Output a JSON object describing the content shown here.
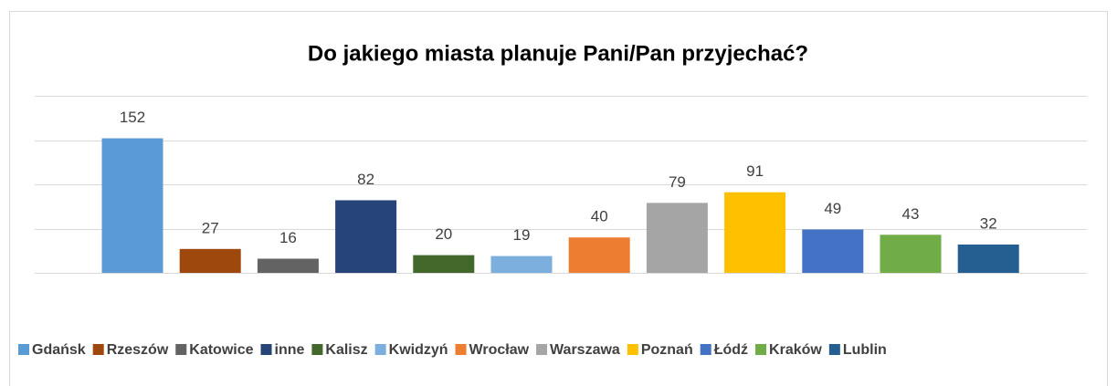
{
  "chart_data": {
    "type": "bar",
    "title": "Do jakiego miasta planuje Pani/Pan przyjechać?",
    "series": [
      {
        "name": "Gdańsk",
        "color": "#5b9bd5",
        "values": [
          152
        ]
      },
      {
        "name": "Rzeszów",
        "color": "#9e480e",
        "values": [
          27
        ]
      },
      {
        "name": "Katowice",
        "color": "#636363",
        "values": [
          16
        ]
      },
      {
        "name": "inne",
        "color": "#264478",
        "values": [
          82
        ]
      },
      {
        "name": "Kalisz",
        "color": "#43682b",
        "values": [
          20
        ]
      },
      {
        "name": "Kwidzyń",
        "color": "#7cafdd",
        "values": [
          19
        ]
      },
      {
        "name": "Wrocław",
        "color": "#ed7d31",
        "values": [
          40
        ]
      },
      {
        "name": "Warszawa",
        "color": "#a5a5a5",
        "values": [
          79
        ]
      },
      {
        "name": "Poznań",
        "color": "#ffc000",
        "values": [
          91
        ]
      },
      {
        "name": "Łódź",
        "color": "#4472c4",
        "values": [
          49
        ]
      },
      {
        "name": "Kraków",
        "color": "#70ad47",
        "values": [
          43
        ]
      },
      {
        "name": "Lublin",
        "color": "#255e91",
        "values": [
          32
        ]
      }
    ],
    "ylim": [
      0,
      200
    ],
    "yticks": [
      0,
      50,
      100,
      150,
      200
    ],
    "grid": true,
    "legend": "bottom"
  }
}
